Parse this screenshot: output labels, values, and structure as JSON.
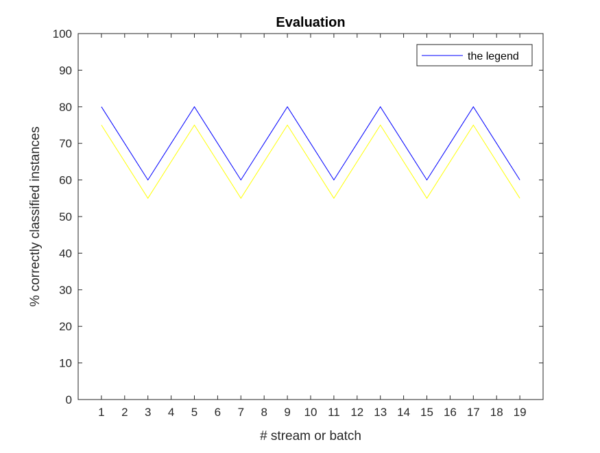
{
  "chart_data": {
    "type": "line",
    "title": "Evaluation",
    "xlabel": "# stream or batch",
    "ylabel": "% correctly classified instances",
    "x": [
      1,
      2,
      3,
      4,
      5,
      6,
      7,
      8,
      9,
      10,
      11,
      12,
      13,
      14,
      15,
      16,
      17,
      18,
      19
    ],
    "xlim": [
      0,
      20
    ],
    "ylim": [
      0,
      100
    ],
    "xticks": [
      1,
      2,
      3,
      4,
      5,
      6,
      7,
      8,
      9,
      10,
      11,
      12,
      13,
      14,
      15,
      16,
      17,
      18,
      19
    ],
    "yticks": [
      0,
      10,
      20,
      30,
      40,
      50,
      60,
      70,
      80,
      90,
      100
    ],
    "grid": false,
    "legend": {
      "position": "top-right",
      "entries": [
        "the legend"
      ]
    },
    "series": [
      {
        "name": "the legend",
        "color": "#0000ff",
        "values": [
          80,
          70,
          60,
          70,
          80,
          70,
          60,
          70,
          80,
          70,
          60,
          70,
          80,
          70,
          60,
          70,
          80,
          70,
          60
        ]
      },
      {
        "color": "#ffff00",
        "values": [
          75,
          65,
          55,
          65,
          75,
          65,
          55,
          65,
          75,
          65,
          55,
          65,
          75,
          65,
          55,
          65,
          75,
          65,
          55
        ]
      }
    ]
  }
}
